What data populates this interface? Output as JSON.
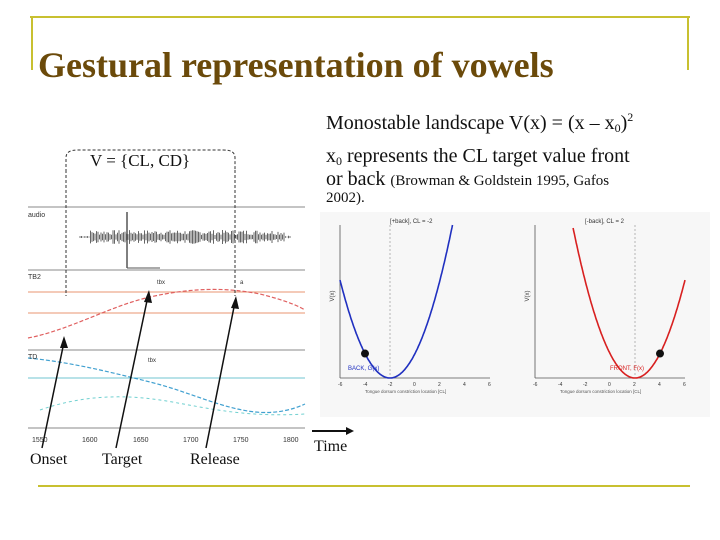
{
  "slide": {
    "title": "Gestural representation of vowels",
    "landscape": {
      "prefix": "Monostable landscape V(x) = (x – x",
      "sub": "0",
      "close": ")",
      "sup": "2"
    },
    "represents": {
      "x": "x",
      "sub": "0",
      "line1_rest": " represents the CL target value front",
      "line2_big": "or back ",
      "line2_small": "(Browman & Goldstein 1995, Gafos",
      "line3": "2002)."
    },
    "vector_label": "V = {CL, CD}",
    "axis_time": "Time",
    "phase_labels": {
      "onset": "Onset",
      "target": "Target",
      "release": "Release"
    }
  },
  "colors": {
    "title": "#6b4a0a",
    "frame_accent": "#c8c030",
    "back_curve": "#2030c0",
    "front_curve": "#d82020"
  },
  "trajectory_panel": {
    "track_labels": [
      "audio",
      "TB2",
      "TD"
    ],
    "x_ticks": [
      "1550",
      "1600",
      "1650",
      "1700",
      "1750",
      "1800"
    ],
    "annotations": [
      "tbx",
      "tbx",
      "a"
    ]
  },
  "landscape_panels": [
    {
      "name": "back",
      "title": "[+back], CL = -2",
      "ylabel": "V(x)",
      "legend": "BACK, G(x)",
      "xlabel": "Tongue dorsum constriction location [CL]",
      "x_ticks": [
        "-6",
        "-4",
        "-2",
        "0",
        "2",
        "4",
        "6"
      ],
      "target_x": -2,
      "ball_x": -4
    },
    {
      "name": "front",
      "title": "[-back], CL = 2",
      "ylabel": "V(x)",
      "legend": "FRONT, F(x)",
      "xlabel": "Tongue dorsum constriction location [CL]",
      "x_ticks": [
        "-6",
        "-4",
        "-2",
        "0",
        "2",
        "4",
        "6"
      ],
      "target_x": 2,
      "ball_x": 4
    }
  ]
}
